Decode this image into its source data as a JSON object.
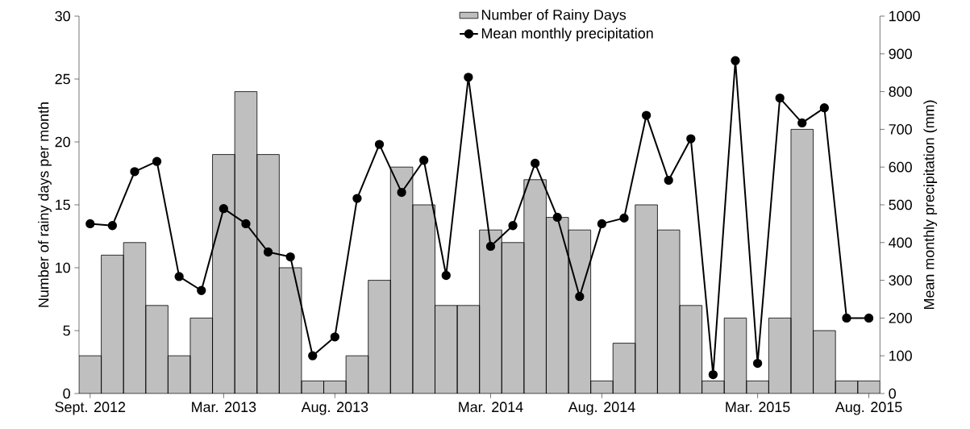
{
  "chart_data": {
    "type": "bar",
    "ylabel": "Number of rainy days per month",
    "y2label": "Mean monthly precipitation (mm)",
    "categories": [
      "Sept. 2012",
      null,
      null,
      null,
      null,
      null,
      "Mar. 2013",
      null,
      null,
      null,
      null,
      "Aug. 2013",
      null,
      null,
      null,
      null,
      null,
      null,
      "Mar. 2014",
      null,
      null,
      null,
      null,
      "Aug. 2014",
      null,
      null,
      null,
      null,
      null,
      null,
      "Mar. 2015",
      null,
      null,
      null,
      null,
      "Aug. 2015"
    ],
    "ylim": [
      0,
      30
    ],
    "yticks": [
      0,
      5,
      10,
      15,
      20,
      25,
      30
    ],
    "y2lim": [
      0,
      1000
    ],
    "y2ticks": [
      0,
      100,
      200,
      300,
      400,
      500,
      600,
      700,
      800,
      900,
      1000
    ],
    "legend": "top",
    "grid": false,
    "marker": "circle",
    "series": [
      {
        "name": "Number of Rainy Days",
        "color": "#bfbfbf",
        "values": [
          3,
          11,
          12,
          7,
          3,
          6,
          19,
          24,
          19,
          10,
          1,
          1,
          3,
          9,
          18,
          15,
          7,
          7,
          13,
          12,
          17,
          14,
          13,
          1,
          4,
          15,
          13,
          7,
          1,
          6,
          1,
          6,
          21,
          5,
          1,
          1
        ]
      },
      {
        "name": "Mean monthly precipitation",
        "type": "line",
        "axis": "y2",
        "color": "#000000",
        "values": [
          450,
          445,
          588,
          615,
          310,
          273,
          490,
          450,
          375,
          362,
          100,
          150,
          517,
          660,
          533,
          618,
          313,
          838,
          390,
          445,
          610,
          467,
          257,
          450,
          465,
          737,
          565,
          675,
          50,
          882,
          80,
          783,
          717,
          757,
          200,
          200
        ]
      }
    ]
  }
}
